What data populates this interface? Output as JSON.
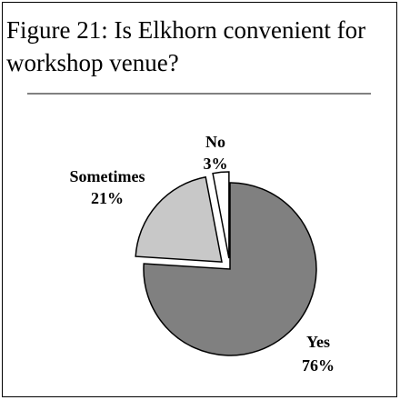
{
  "chart_data": {
    "type": "pie",
    "title": "Figure 21:  Is Elkhorn convenient for workshop venue?",
    "categories": [
      "Yes",
      "Sometimes",
      "No"
    ],
    "values": [
      76,
      21,
      3
    ],
    "value_labels": [
      "76%",
      "21%",
      "3%"
    ],
    "colors": [
      "#808080",
      "#c8c8c8",
      "#ffffff"
    ],
    "exploded": [
      false,
      true,
      true
    ]
  }
}
